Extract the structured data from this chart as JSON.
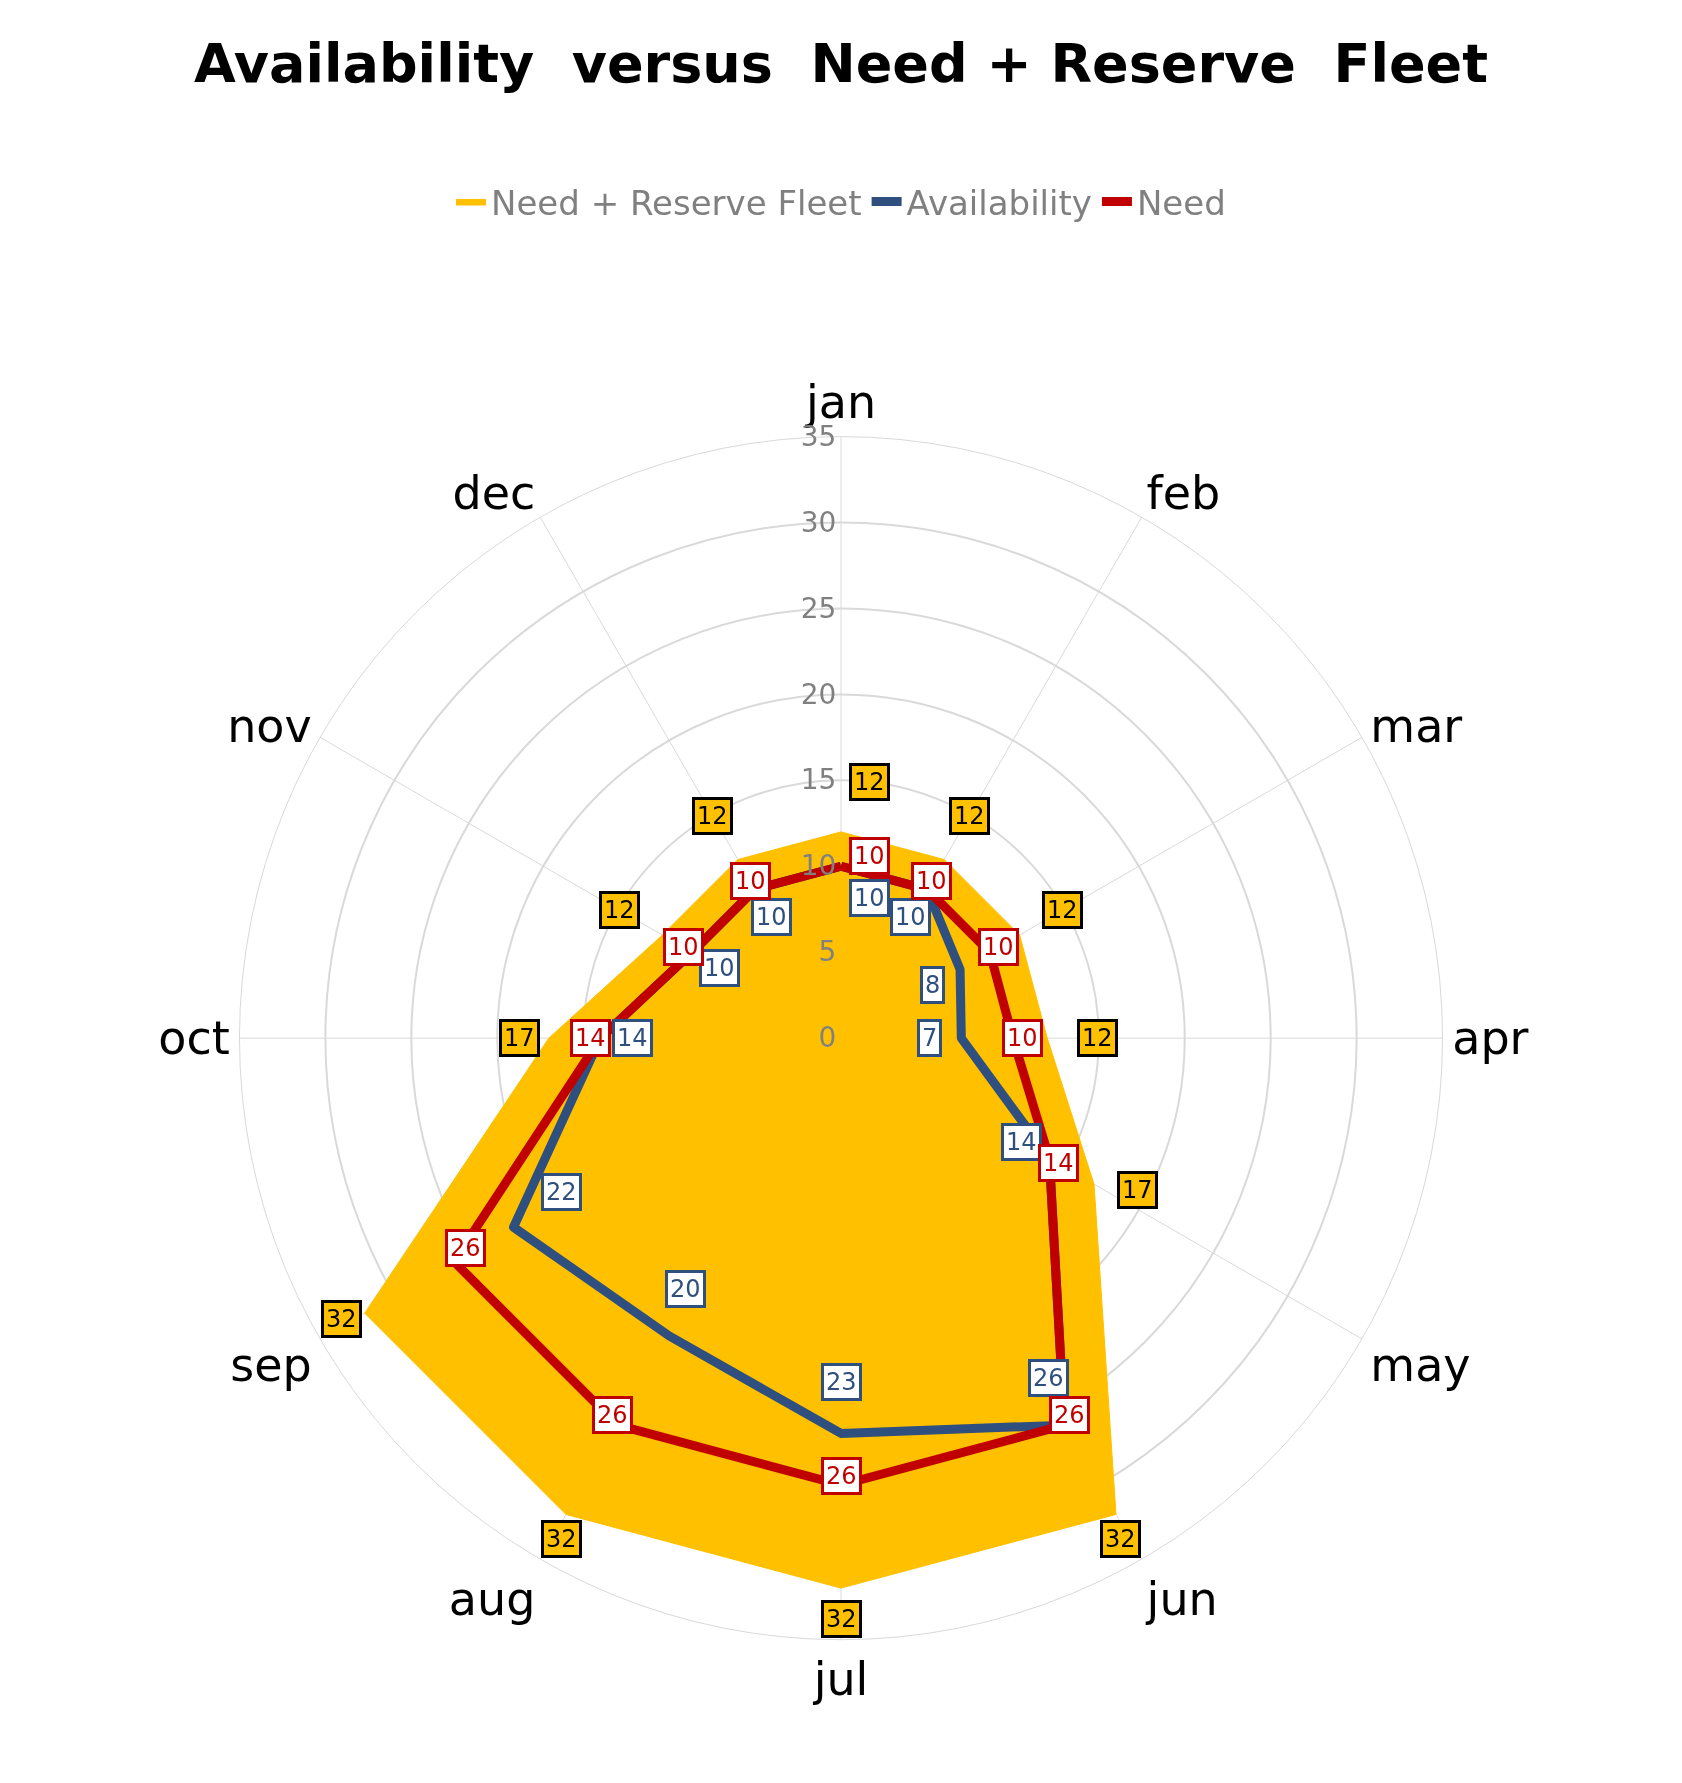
{
  "chart_data": {
    "type": "radar",
    "title": "Availability  versus  Need + Reserve  Fleet",
    "categories": [
      "jan",
      "feb",
      "mar",
      "apr",
      "may",
      "jun",
      "jul",
      "aug",
      "sep",
      "oct",
      "nov",
      "dec"
    ],
    "series": [
      {
        "name": "Need + Reserve Fleet",
        "type": "area",
        "color": "#ffc000",
        "values": [
          12,
          12,
          12,
          12,
          17,
          32,
          32,
          32,
          32,
          17,
          12,
          12
        ]
      },
      {
        "name": "Availability",
        "color": "#2f4f7f",
        "values": [
          10,
          10,
          8,
          7,
          14,
          26,
          23,
          20,
          22,
          14,
          10,
          10
        ]
      },
      {
        "name": "Need",
        "color": "#c00000",
        "values": [
          10,
          10,
          10,
          10,
          14,
          26,
          26,
          26,
          26,
          14,
          10,
          10
        ]
      }
    ],
    "ylim": [
      0,
      35
    ],
    "yticks": [
      0,
      5,
      10,
      15,
      20,
      25,
      30,
      35
    ],
    "grid": true,
    "legend": "top",
    "data_labels": true
  }
}
